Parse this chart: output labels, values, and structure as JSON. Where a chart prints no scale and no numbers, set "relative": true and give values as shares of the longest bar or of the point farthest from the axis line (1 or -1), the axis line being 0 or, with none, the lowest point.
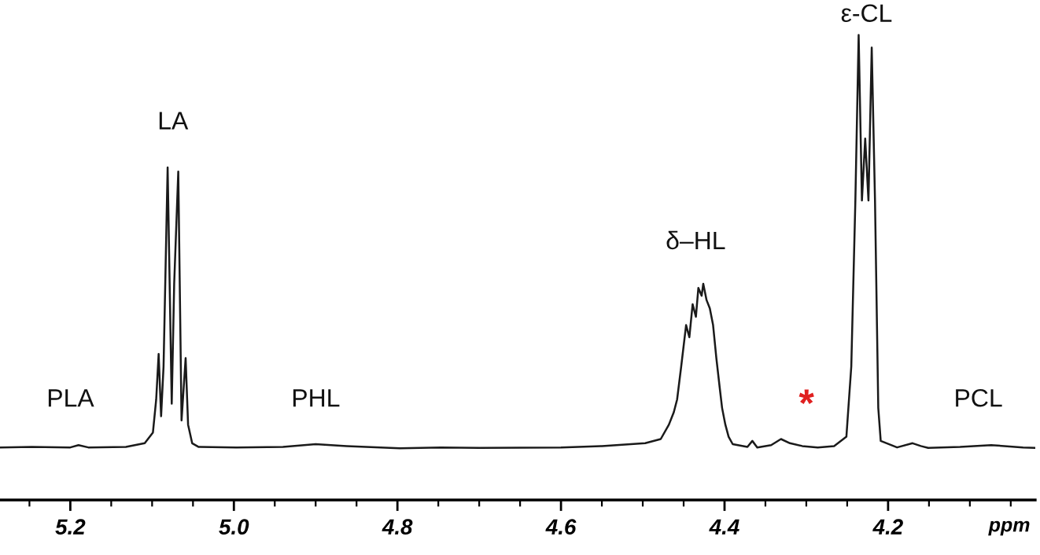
{
  "chart_data": {
    "type": "line",
    "relative": true,
    "xlabel": "ppm",
    "color": "#1a1a1a",
    "xlim": [
      5.286,
      4.02
    ],
    "xticks": [
      5.2,
      {
        "value": 5.0,
        "label": "5.0"
      },
      4.8,
      4.6,
      4.4,
      4.2
    ],
    "x": [
      5.286,
      5.247,
      5.2,
      5.19,
      5.178,
      5.132,
      5.109,
      5.099,
      5.095,
      5.092,
      5.089,
      5.086,
      5.081,
      5.076,
      5.073,
      5.068,
      5.064,
      5.059,
      5.056,
      5.051,
      5.043,
      4.997,
      4.94,
      4.9,
      4.862,
      4.797,
      4.747,
      4.7,
      4.6,
      4.55,
      4.497,
      4.478,
      4.468,
      4.462,
      4.458,
      4.453,
      4.447,
      4.443,
      4.439,
      4.435,
      4.432,
      4.428,
      4.426,
      4.422,
      4.418,
      4.414,
      4.41,
      4.406,
      4.403,
      4.399,
      4.395,
      4.39,
      4.372,
      4.366,
      4.36,
      4.343,
      4.331,
      4.32,
      4.305,
      4.286,
      4.266,
      4.251,
      4.245,
      4.24,
      4.236,
      4.232,
      4.228,
      4.224,
      4.22,
      4.216,
      4.212,
      4.209,
      4.189,
      4.17,
      4.16,
      4.151,
      4.112,
      4.074,
      4.035,
      4.02
    ],
    "values": [
      0.113,
      0.114,
      0.113,
      0.118,
      0.113,
      0.114,
      0.122,
      0.145,
      0.216,
      0.314,
      0.18,
      0.287,
      0.715,
      0.207,
      0.465,
      0.706,
      0.171,
      0.305,
      0.162,
      0.122,
      0.114,
      0.113,
      0.114,
      0.12,
      0.116,
      0.111,
      0.113,
      0.112,
      0.113,
      0.116,
      0.122,
      0.131,
      0.162,
      0.189,
      0.216,
      0.287,
      0.376,
      0.35,
      0.421,
      0.394,
      0.456,
      0.439,
      0.465,
      0.43,
      0.412,
      0.376,
      0.305,
      0.243,
      0.198,
      0.162,
      0.136,
      0.12,
      0.114,
      0.127,
      0.113,
      0.118,
      0.131,
      0.122,
      0.116,
      0.113,
      0.116,
      0.136,
      0.287,
      0.644,
      1.0,
      0.644,
      0.777,
      0.644,
      0.973,
      0.644,
      0.198,
      0.127,
      0.113,
      0.122,
      0.116,
      0.112,
      0.114,
      0.118,
      0.113,
      0.112
    ],
    "annotations": [
      "PLA",
      "LA",
      "PHL",
      "δ–HL",
      "*",
      "ε-CL",
      "PCL"
    ]
  }
}
